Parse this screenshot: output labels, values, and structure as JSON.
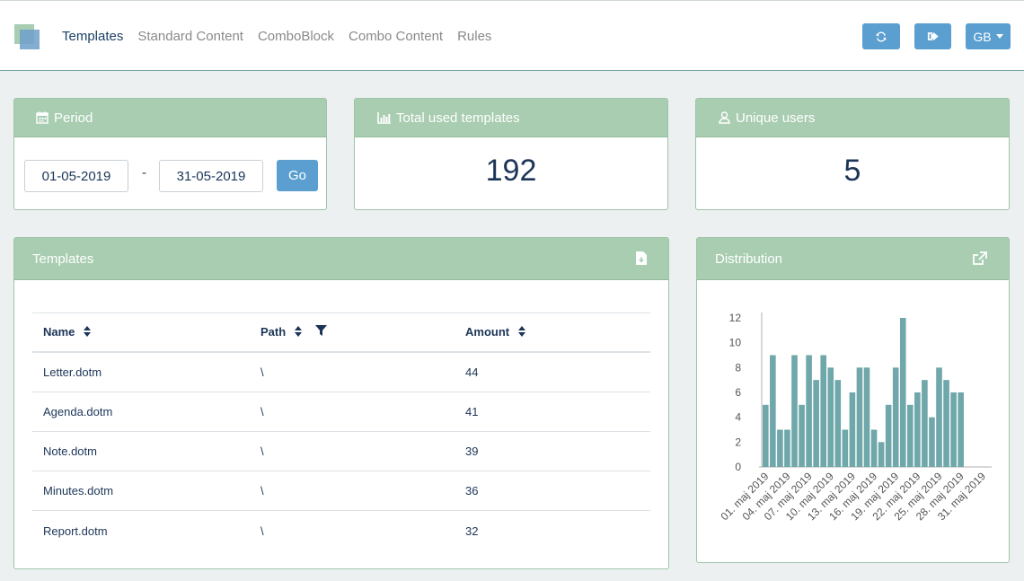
{
  "nav": {
    "items": [
      "Templates",
      "Standard Content",
      "ComboBlock",
      "Combo Content",
      "Rules"
    ],
    "active_index": 0
  },
  "toolbar": {
    "refresh_icon": "refresh-icon",
    "logout_icon": "sign-out-icon",
    "language_label": "GB"
  },
  "period": {
    "title": "Period",
    "from": "01-05-2019",
    "separator": "-",
    "to": "31-05-2019",
    "go_label": "Go"
  },
  "total_used": {
    "title": "Total used templates",
    "value": "192"
  },
  "unique_users": {
    "title": "Unique users",
    "value": "5"
  },
  "templates": {
    "title": "Templates",
    "columns": [
      "Name",
      "Path",
      "Amount"
    ],
    "rows": [
      [
        "Letter.dotm",
        "\\",
        "44"
      ],
      [
        "Agenda.dotm",
        "\\",
        "41"
      ],
      [
        "Note.dotm",
        "\\",
        "39"
      ],
      [
        "Minutes.dotm",
        "\\",
        "36"
      ],
      [
        "Report.dotm",
        "\\",
        "32"
      ]
    ]
  },
  "distribution": {
    "title": "Distribution"
  },
  "colors": {
    "header_green": "#a9cdb1",
    "button_blue": "#5a9fd0",
    "bar_teal": "#6fa7aa",
    "text_navy": "#1c3557"
  },
  "chart_data": {
    "type": "bar",
    "x": [
      "01. maj 2019",
      "02. maj 2019",
      "03. maj 2019",
      "04. maj 2019",
      "05. maj 2019",
      "06. maj 2019",
      "07. maj 2019",
      "08. maj 2019",
      "09. maj 2019",
      "10. maj 2019",
      "11. maj 2019",
      "12. maj 2019",
      "13. maj 2019",
      "14. maj 2019",
      "15. maj 2019",
      "16. maj 2019",
      "17. maj 2019",
      "18. maj 2019",
      "19. maj 2019",
      "20. maj 2019",
      "21. maj 2019",
      "22. maj 2019",
      "23. maj 2019",
      "24. maj 2019",
      "25. maj 2019",
      "26. maj 2019",
      "27. maj 2019",
      "28. maj 2019"
    ],
    "values": [
      5,
      9,
      3,
      3,
      9,
      5,
      9,
      7,
      9,
      8,
      7,
      3,
      6,
      8,
      8,
      3,
      2,
      5,
      8,
      12,
      5,
      6,
      7,
      4,
      8,
      7,
      6,
      6
    ],
    "tick_labels": [
      "01. maj 2019",
      "04. maj 2019",
      "07. maj 2019",
      "10. maj 2019",
      "13. maj 2019",
      "16. maj 2019",
      "19. maj 2019",
      "22. maj 2019",
      "25. maj 2019",
      "28. maj 2019",
      "31. maj 2019"
    ],
    "yticks": [
      0,
      2,
      4,
      6,
      8,
      10,
      12
    ],
    "ylim": [
      0,
      12
    ],
    "title": "",
    "xlabel": "",
    "ylabel": "",
    "grid": false
  }
}
